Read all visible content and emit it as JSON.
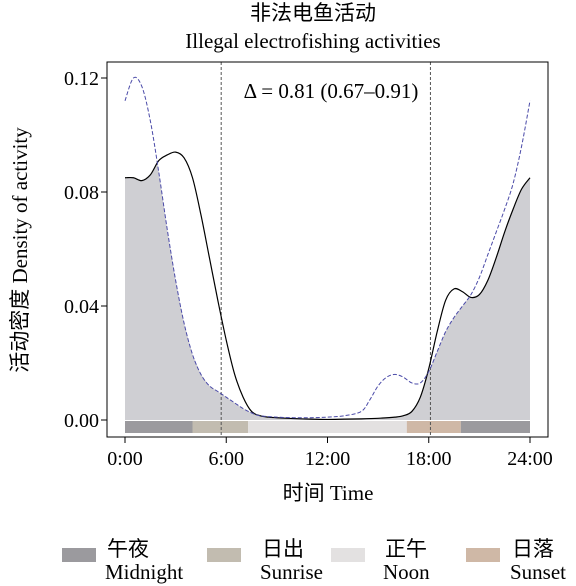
{
  "chart_data": {
    "type": "area",
    "title": "非法电鱼活动",
    "subtitle": "Illegal electrofishing activities",
    "xlabel": "时间 Time",
    "ylabel": "活动密度 Density of activity",
    "xlim": [
      0,
      24
    ],
    "ylim": [
      0,
      0.12
    ],
    "x_ticks": [
      "0:00",
      "6:00",
      "12:00",
      "18:00",
      "24:00"
    ],
    "y_ticks": [
      "0.00",
      "0.04",
      "0.08",
      "0.12"
    ],
    "annotation": "Δ = 0.81 (0.67–0.91)",
    "overlap_area_color": "#cfcfd3",
    "series": [
      {
        "style": "solid",
        "color": "#000000",
        "x": [
          0,
          0.5,
          1,
          1.5,
          2,
          2.5,
          3,
          3.5,
          4,
          4.5,
          5,
          5.5,
          6,
          6.5,
          7,
          7.5,
          8,
          8.5,
          9,
          10,
          11,
          12,
          13,
          14,
          15,
          16,
          16.5,
          17,
          17.5,
          18,
          18.5,
          19,
          19.5,
          20,
          20.5,
          21,
          21.5,
          22,
          22.5,
          23,
          23.5,
          24
        ],
        "values": [
          0.085,
          0.085,
          0.084,
          0.086,
          0.091,
          0.093,
          0.094,
          0.092,
          0.085,
          0.072,
          0.057,
          0.042,
          0.028,
          0.016,
          0.008,
          0.003,
          0.0015,
          0.001,
          0.0008,
          0.0005,
          0.0003,
          0.0002,
          0.0003,
          0.0004,
          0.0006,
          0.001,
          0.0015,
          0.003,
          0.008,
          0.018,
          0.031,
          0.042,
          0.046,
          0.045,
          0.043,
          0.044,
          0.049,
          0.057,
          0.066,
          0.074,
          0.081,
          0.085
        ]
      },
      {
        "style": "dashed",
        "color": "#4a4aa8",
        "x": [
          0,
          0.5,
          1,
          1.5,
          2,
          2.5,
          3,
          3.5,
          4,
          4.5,
          5,
          5.5,
          6,
          6.5,
          7,
          7.5,
          8,
          9,
          10,
          11,
          12,
          13,
          14,
          14.5,
          15,
          15.5,
          16,
          16.5,
          17,
          17.5,
          18,
          18.5,
          19,
          19.5,
          20,
          20.5,
          21,
          21.5,
          22,
          22.5,
          23,
          23.5,
          24
        ],
        "values": [
          0.112,
          0.12,
          0.117,
          0.105,
          0.087,
          0.067,
          0.049,
          0.034,
          0.023,
          0.016,
          0.012,
          0.01,
          0.008,
          0.006,
          0.004,
          0.0025,
          0.0015,
          0.001,
          0.0008,
          0.0008,
          0.001,
          0.0015,
          0.003,
          0.007,
          0.012,
          0.015,
          0.016,
          0.015,
          0.013,
          0.013,
          0.017,
          0.024,
          0.031,
          0.036,
          0.04,
          0.044,
          0.05,
          0.058,
          0.066,
          0.074,
          0.083,
          0.096,
          0.112
        ]
      }
    ],
    "guide_lines_x": [
      5.7,
      18.1
    ],
    "time_bar": [
      {
        "from": 0,
        "to": 4,
        "color": "#9b9a9e"
      },
      {
        "from": 4,
        "to": 7.3,
        "color": "#c2bcb0"
      },
      {
        "from": 7.3,
        "to": 16.7,
        "color": "#e3e1e1"
      },
      {
        "from": 16.7,
        "to": 19.9,
        "color": "#cfb8a6"
      },
      {
        "from": 19.9,
        "to": 24,
        "color": "#9b9a9e"
      }
    ],
    "legend": [
      {
        "zh": "午夜",
        "en": "Midnight",
        "color": "#9b9a9e"
      },
      {
        "zh": "日出",
        "en": "Sunrise",
        "color": "#c2bcb0"
      },
      {
        "zh": "正午",
        "en": "Noon",
        "color": "#e3e1e1"
      },
      {
        "zh": "日落",
        "en": "Sunset",
        "color": "#cfb8a6"
      }
    ]
  }
}
